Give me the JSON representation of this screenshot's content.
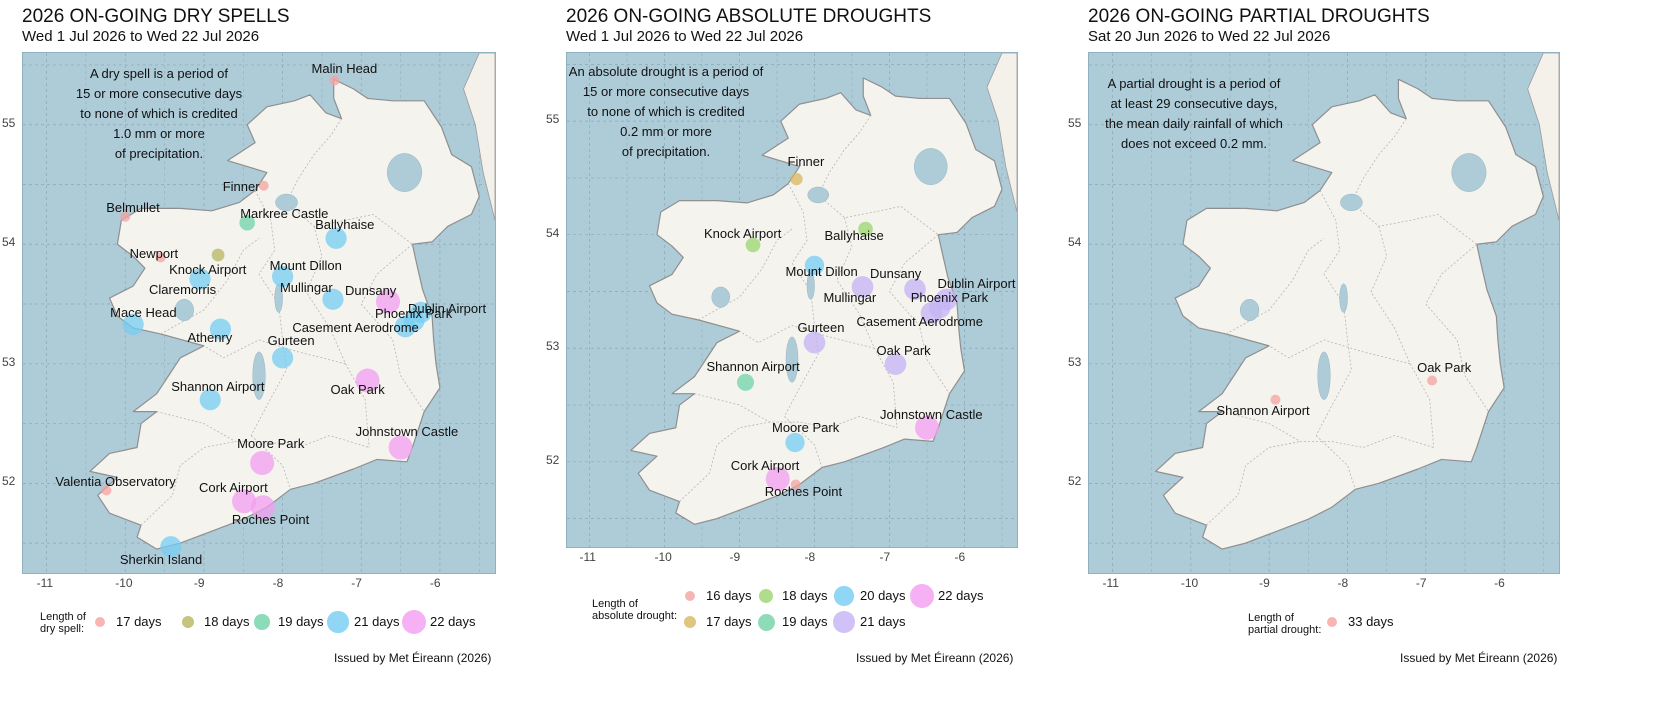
{
  "panels": [
    {
      "id": "dry",
      "title": "2026 ON-GOING DRY SPELLS",
      "subtitle": "Wed 1 Jul 2026 to Wed 22 Jul 2026",
      "description": [
        "A dry spell is a period of",
        "15 or more consecutive days",
        "to none of which is credited",
        "1.0 mm or more",
        "of precipitation."
      ],
      "legend_title": [
        "Length of",
        "dry spell:"
      ],
      "legend": [
        {
          "label": "17 days",
          "days": 17,
          "color": "#f4a3a0"
        },
        {
          "label": "18 days",
          "days": 18,
          "color": "#b8b561"
        },
        {
          "label": "19 days",
          "days": 19,
          "color": "#6fd3a8"
        },
        {
          "label": "21 days",
          "days": 21,
          "color": "#76cdf2"
        },
        {
          "label": "22 days",
          "days": 22,
          "color": "#f29df0"
        }
      ],
      "stations": [
        {
          "name": "Malin Head",
          "lon": -7.34,
          "lat": 55.37,
          "days": 17
        },
        {
          "name": "Finner",
          "lon": -8.24,
          "lat": 54.49,
          "days": 17
        },
        {
          "name": "Belmullet",
          "lon": -10.0,
          "lat": 54.23,
          "days": 17
        },
        {
          "name": "Markree Castle",
          "lon": -8.45,
          "lat": 54.18,
          "days": 19
        },
        {
          "name": "Newport",
          "lon": -9.55,
          "lat": 53.89,
          "days": 17
        },
        {
          "name": "Knock Airport",
          "lon": -8.82,
          "lat": 53.91,
          "days": 18
        },
        {
          "name": "Ballyhaise",
          "lon": -7.32,
          "lat": 54.05,
          "days": 21
        },
        {
          "name": "Claremorris",
          "lon": -9.05,
          "lat": 53.71,
          "days": 21
        },
        {
          "name": "Mount Dillon",
          "lon": -8.0,
          "lat": 53.73,
          "days": 21
        },
        {
          "name": "Mullingar",
          "lon": -7.36,
          "lat": 53.54,
          "days": 21
        },
        {
          "name": "Dunsany",
          "lon": -6.66,
          "lat": 53.52,
          "days": 22
        },
        {
          "name": "Dublin Airport",
          "lon": -6.24,
          "lat": 53.43,
          "days": 21
        },
        {
          "name": "Mace Head",
          "lon": -9.9,
          "lat": 53.33,
          "days": 21
        },
        {
          "name": "Athenry",
          "lon": -8.79,
          "lat": 53.29,
          "days": 21
        },
        {
          "name": "Phoenix Park",
          "lon": -6.33,
          "lat": 53.36,
          "days": 21
        },
        {
          "name": "Casement Aerodrome",
          "lon": -6.44,
          "lat": 53.31,
          "days": 21
        },
        {
          "name": "Gurteen",
          "lon": -8.0,
          "lat": 53.05,
          "days": 21
        },
        {
          "name": "Oak Park",
          "lon": -6.92,
          "lat": 52.86,
          "days": 22
        },
        {
          "name": "Shannon Airport",
          "lon": -8.92,
          "lat": 52.7,
          "days": 21
        },
        {
          "name": "Johnstown Castle",
          "lon": -6.5,
          "lat": 52.3,
          "days": 22
        },
        {
          "name": "Moore Park",
          "lon": -8.26,
          "lat": 52.17,
          "days": 22
        },
        {
          "name": "Valentia Observatory",
          "lon": -10.24,
          "lat": 51.94,
          "days": 17
        },
        {
          "name": "Cork Airport",
          "lon": -8.49,
          "lat": 51.85,
          "days": 22
        },
        {
          "name": "Roches Point",
          "lon": -8.25,
          "lat": 51.8,
          "days": 22
        },
        {
          "name": "Sherkin Island",
          "lon": -9.42,
          "lat": 51.47,
          "days": 21
        }
      ]
    },
    {
      "id": "absolute",
      "title": "2026 ON-GOING ABSOLUTE DROUGHTS",
      "subtitle": "Wed 1 Jul 2026 to Wed 22 Jul 2026",
      "description": [
        "An absolute drought is a period of",
        "15 or more consecutive days",
        "to none of which is credited",
        "0.2 mm or more",
        "of precipitation."
      ],
      "legend_title": [
        "Length of",
        "absolute drought:"
      ],
      "legend": [
        {
          "label": "16 days",
          "days": 16,
          "color": "#f4a3a0"
        },
        {
          "label": "17 days",
          "days": 17,
          "color": "#d8b75f"
        },
        {
          "label": "18 days",
          "days": 18,
          "color": "#9bd56e"
        },
        {
          "label": "19 days",
          "days": 19,
          "color": "#6fd3a8"
        },
        {
          "label": "20 days",
          "days": 20,
          "color": "#76cdf2"
        },
        {
          "label": "21 days",
          "days": 21,
          "color": "#c4b3f5"
        },
        {
          "label": "22 days",
          "days": 22,
          "color": "#f29df0"
        }
      ],
      "stations": [
        {
          "name": "Finner",
          "lon": -8.24,
          "lat": 54.49,
          "days": 17
        },
        {
          "name": "Ballyhaise",
          "lon": -7.32,
          "lat": 54.05,
          "days": 18
        },
        {
          "name": "Knock Airport",
          "lon": -8.82,
          "lat": 53.91,
          "days": 18
        },
        {
          "name": "Mount Dillon",
          "lon": -8.0,
          "lat": 53.73,
          "days": 20
        },
        {
          "name": "Dunsany",
          "lon": -6.66,
          "lat": 53.52,
          "days": 21
        },
        {
          "name": "Mullingar",
          "lon": -7.36,
          "lat": 53.54,
          "days": 21
        },
        {
          "name": "Dublin Airport",
          "lon": -6.24,
          "lat": 53.43,
          "days": 21
        },
        {
          "name": "Phoenix Park",
          "lon": -6.33,
          "lat": 53.36,
          "days": 21
        },
        {
          "name": "Casement Aerodrome",
          "lon": -6.44,
          "lat": 53.31,
          "days": 21
        },
        {
          "name": "Gurteen",
          "lon": -8.0,
          "lat": 53.05,
          "days": 21
        },
        {
          "name": "Oak Park",
          "lon": -6.92,
          "lat": 52.86,
          "days": 21
        },
        {
          "name": "Shannon Airport",
          "lon": -8.92,
          "lat": 52.7,
          "days": 19
        },
        {
          "name": "Johnstown Castle",
          "lon": -6.5,
          "lat": 52.3,
          "days": 22
        },
        {
          "name": "Moore Park",
          "lon": -8.26,
          "lat": 52.17,
          "days": 20
        },
        {
          "name": "Cork Airport",
          "lon": -8.49,
          "lat": 51.85,
          "days": 22
        },
        {
          "name": "Roches Point",
          "lon": -8.25,
          "lat": 51.8,
          "days": 16
        }
      ]
    },
    {
      "id": "partial",
      "title": "2026 ON-GOING PARTIAL DROUGHTS",
      "subtitle": "Sat 20 Jun 2026 to Wed 22 Jul 2026",
      "description": [
        "A partial drought is a period of",
        "at least 29 consecutive days,",
        "the mean daily rainfall of which",
        "does not exceed 0.2 mm."
      ],
      "legend_title": [
        "Length of",
        "partial drought:"
      ],
      "legend": [
        {
          "label": "33 days",
          "days": 33,
          "color": "#f4a3a0"
        }
      ],
      "stations": [
        {
          "name": "Oak Park",
          "lon": -6.92,
          "lat": 52.86,
          "days": 33
        },
        {
          "name": "Shannon Airport",
          "lon": -8.92,
          "lat": 52.7,
          "days": 33
        }
      ]
    }
  ],
  "axes": {
    "x_ticks": [
      -11,
      -10,
      -9,
      -8,
      -7,
      -6
    ],
    "y_ticks": [
      55,
      54,
      53,
      52
    ],
    "lon_range": [
      -11.3,
      -5.3
    ],
    "lat_range": [
      51.25,
      55.6
    ]
  },
  "issued": "Issued by Met Éireann (2026)"
}
